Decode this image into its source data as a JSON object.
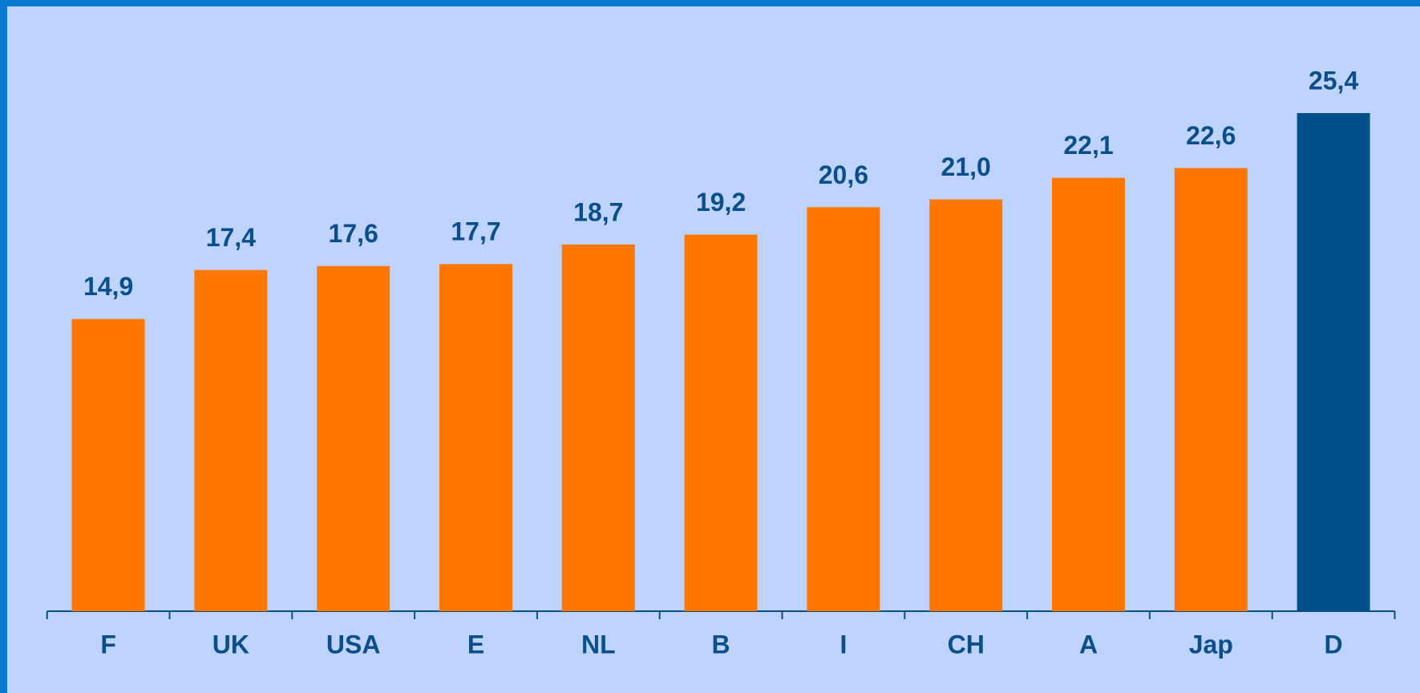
{
  "chart_data": {
    "type": "bar",
    "categories": [
      "F",
      "UK",
      "USA",
      "E",
      "NL",
      "B",
      "I",
      "CH",
      "A",
      "Jap",
      "D"
    ],
    "values": [
      14.9,
      17.4,
      17.6,
      17.7,
      18.7,
      19.2,
      20.6,
      21.0,
      22.1,
      22.6,
      25.4
    ],
    "value_labels": [
      "14,9",
      "17,4",
      "17,6",
      "17,7",
      "18,7",
      "19,2",
      "20,6",
      "21,0",
      "22,1",
      "22,6",
      "25,4"
    ],
    "colors": [
      "#ff7700",
      "#ff7700",
      "#ff7700",
      "#ff7700",
      "#ff7700",
      "#ff7700",
      "#ff7700",
      "#ff7700",
      "#ff7700",
      "#ff7700",
      "#00508a"
    ]
  }
}
